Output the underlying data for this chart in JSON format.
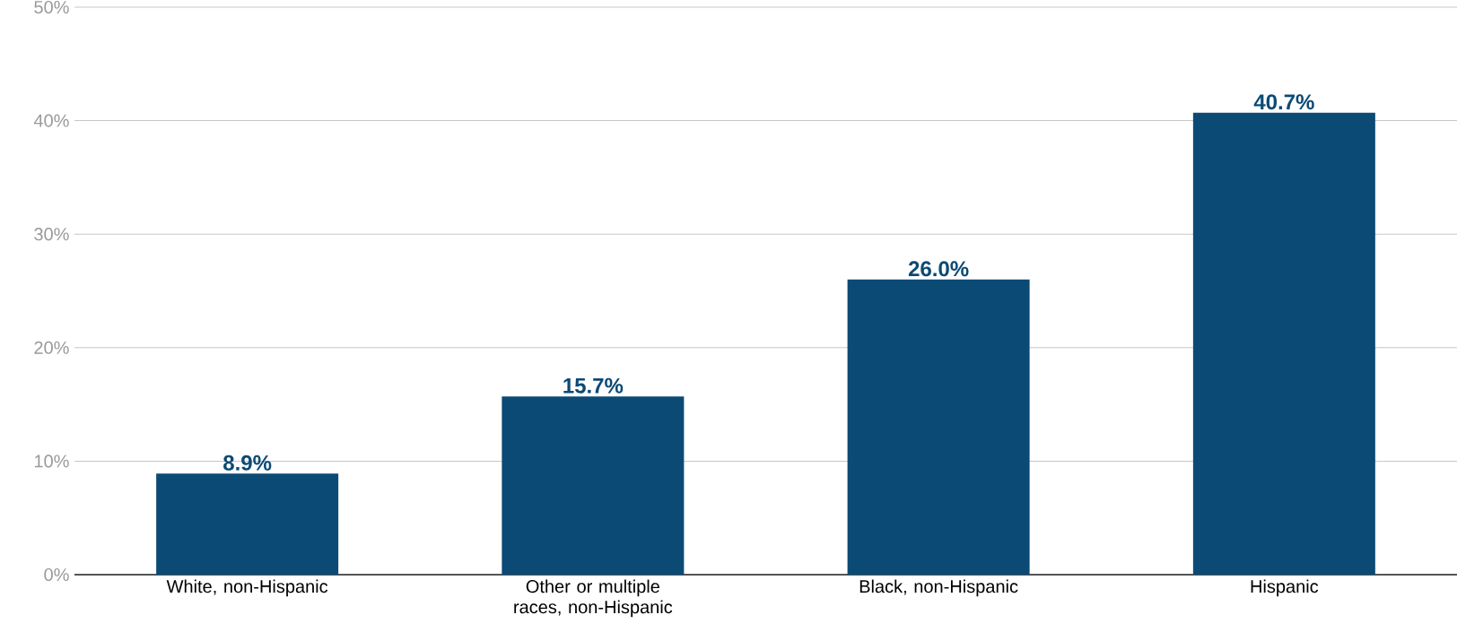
{
  "chart_data": {
    "type": "bar",
    "categories": [
      "White, non-Hispanic",
      "Other or multiple races, non-Hispanic",
      "Black, non-Hispanic",
      "Hispanic"
    ],
    "values": [
      8.9,
      15.7,
      26.0,
      40.7
    ],
    "value_labels": [
      "8.9%",
      "15.7%",
      "26.0%",
      "40.7%"
    ],
    "color": "#0b4a75",
    "ylim": [
      0,
      50
    ],
    "yticks": [
      {
        "value": 0,
        "label": "0%"
      },
      {
        "value": 10,
        "label": "10%"
      },
      {
        "value": 20,
        "label": "20%"
      },
      {
        "value": 30,
        "label": "30%"
      },
      {
        "value": 40,
        "label": "40%"
      },
      {
        "value": 50,
        "label": "50%"
      }
    ],
    "grid": "y"
  }
}
